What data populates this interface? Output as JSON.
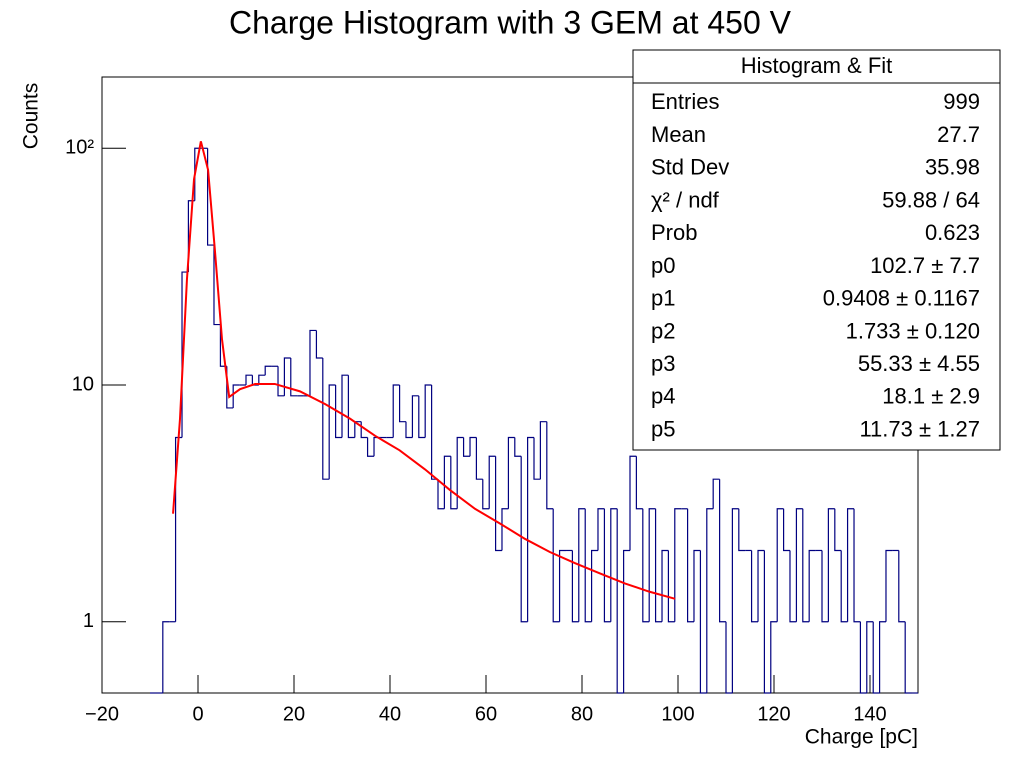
{
  "chart_data": {
    "type": "histogram",
    "title": "Charge Histogram with 3 GEM at 450 V",
    "x_label": "Charge [pC]",
    "y_label": "Counts",
    "log_y": true,
    "color": "#000080",
    "bins": [
      -10,
      -8.67,
      -7.33,
      -6,
      -4.67,
      -3.33,
      -2,
      -0.67,
      0.67,
      2,
      3.33,
      4.67,
      6,
      7.33,
      8.67,
      10,
      11.33,
      12.67,
      14,
      15.33,
      16.67,
      18,
      19.33,
      20.67,
      22,
      23.33,
      24.67,
      26,
      27.33,
      28.67,
      30,
      31.33,
      32.67,
      34,
      35.33,
      36.67,
      38,
      39.33,
      40.67,
      42,
      43.33,
      44.67,
      46,
      47.33,
      48.67,
      50,
      51.33,
      52.67,
      54,
      55.33,
      56.67,
      58,
      59.33,
      60.67,
      62,
      63.33,
      64.67,
      66,
      67.33,
      68.67,
      70,
      71.33,
      72.67,
      74,
      75.33,
      76.67,
      78,
      79.33,
      80.67,
      82,
      83.33,
      84.67,
      86,
      87.33,
      88.67,
      90,
      91.33,
      92.67,
      94,
      95.33,
      96.67,
      98,
      99.33,
      100.67,
      102,
      103.33,
      104.67,
      106,
      107.33,
      108.67,
      110,
      111.33,
      112.67,
      114,
      115.33,
      116.67,
      118,
      119.33,
      120.67,
      122,
      123.33,
      124.67,
      126,
      127.33,
      128.67,
      130,
      131.33,
      132.67,
      134,
      135.33,
      136.67,
      138,
      139.33,
      140.67,
      142,
      143.33,
      144.67,
      146,
      147.33,
      148.67,
      150
    ],
    "values": [
      0,
      0,
      1,
      1,
      6,
      30,
      60,
      100,
      100,
      39,
      18,
      12,
      8,
      10,
      10,
      11,
      10,
      11,
      12,
      12,
      9,
      13,
      9,
      9,
      9,
      17,
      13,
      4,
      10,
      6,
      11,
      6,
      7,
      6,
      5,
      6,
      6,
      6,
      10,
      7,
      6,
      9,
      6,
      10,
      4,
      3,
      5,
      3,
      6,
      5,
      6,
      4,
      3,
      5,
      2,
      3,
      6,
      5,
      1,
      6,
      4,
      7,
      3,
      1,
      2,
      2,
      1,
      3,
      1,
      2,
      3,
      1,
      3,
      0,
      2,
      5,
      3,
      1,
      3,
      1,
      2,
      1,
      3,
      3,
      1,
      2,
      0,
      3,
      4,
      1,
      0,
      3,
      2,
      2,
      1,
      2,
      0,
      1,
      3,
      2,
      1,
      3,
      1,
      2,
      2,
      1,
      3,
      2,
      1,
      3,
      1,
      0,
      1,
      0,
      1,
      2,
      2,
      1,
      0,
      0
    ],
    "fit": {
      "color": "#ff0000",
      "x": [
        -5.2,
        -3.75,
        -2.3,
        -0.83,
        0.6,
        2.1,
        3.5,
        5,
        6.5,
        8.75,
        11.9,
        16,
        21.25,
        26.5,
        31.7,
        36.9,
        42,
        47.3,
        52.5,
        57.7,
        62.9,
        68.1,
        73.3,
        78.5,
        83.75,
        89,
        94,
        99.4
      ],
      "values": [
        2.86,
        7.2,
        28,
        74,
        107,
        81,
        37.5,
        15.6,
        8.9,
        9.6,
        10.1,
        10.1,
        9.4,
        8.3,
        7.2,
        6.1,
        5.3,
        4.4,
        3.6,
        3.0,
        2.6,
        2.24,
        1.97,
        1.77,
        1.6,
        1.45,
        1.34,
        1.25
      ]
    },
    "xlim": [
      -20,
      150
    ],
    "xticks": [
      {
        "value": -20,
        "label": "−20"
      },
      0,
      20,
      40,
      60,
      80,
      100,
      120,
      140
    ],
    "ylim": [
      0.5,
      200
    ],
    "yticks": [
      1,
      10,
      {
        "value": 100,
        "label": "10²"
      }
    ],
    "stats": {
      "title": "Histogram & Fit",
      "rows": [
        [
          "Entries",
          "999"
        ],
        [
          "Mean",
          "27.7"
        ],
        [
          "Std Dev",
          "35.98"
        ],
        [
          "χ² / ndf",
          "59.88 / 64"
        ],
        [
          "Prob",
          "0.623"
        ],
        [
          "p0",
          "102.7 ± 7.7"
        ],
        [
          "p1",
          "0.9408 ± 0.1167"
        ],
        [
          "p2",
          "1.733 ± 0.120"
        ],
        [
          "p3",
          "55.33 ± 4.55"
        ],
        [
          "p4",
          "18.1 ± 2.9"
        ],
        [
          "p5",
          "11.73 ± 1.27"
        ]
      ]
    }
  }
}
